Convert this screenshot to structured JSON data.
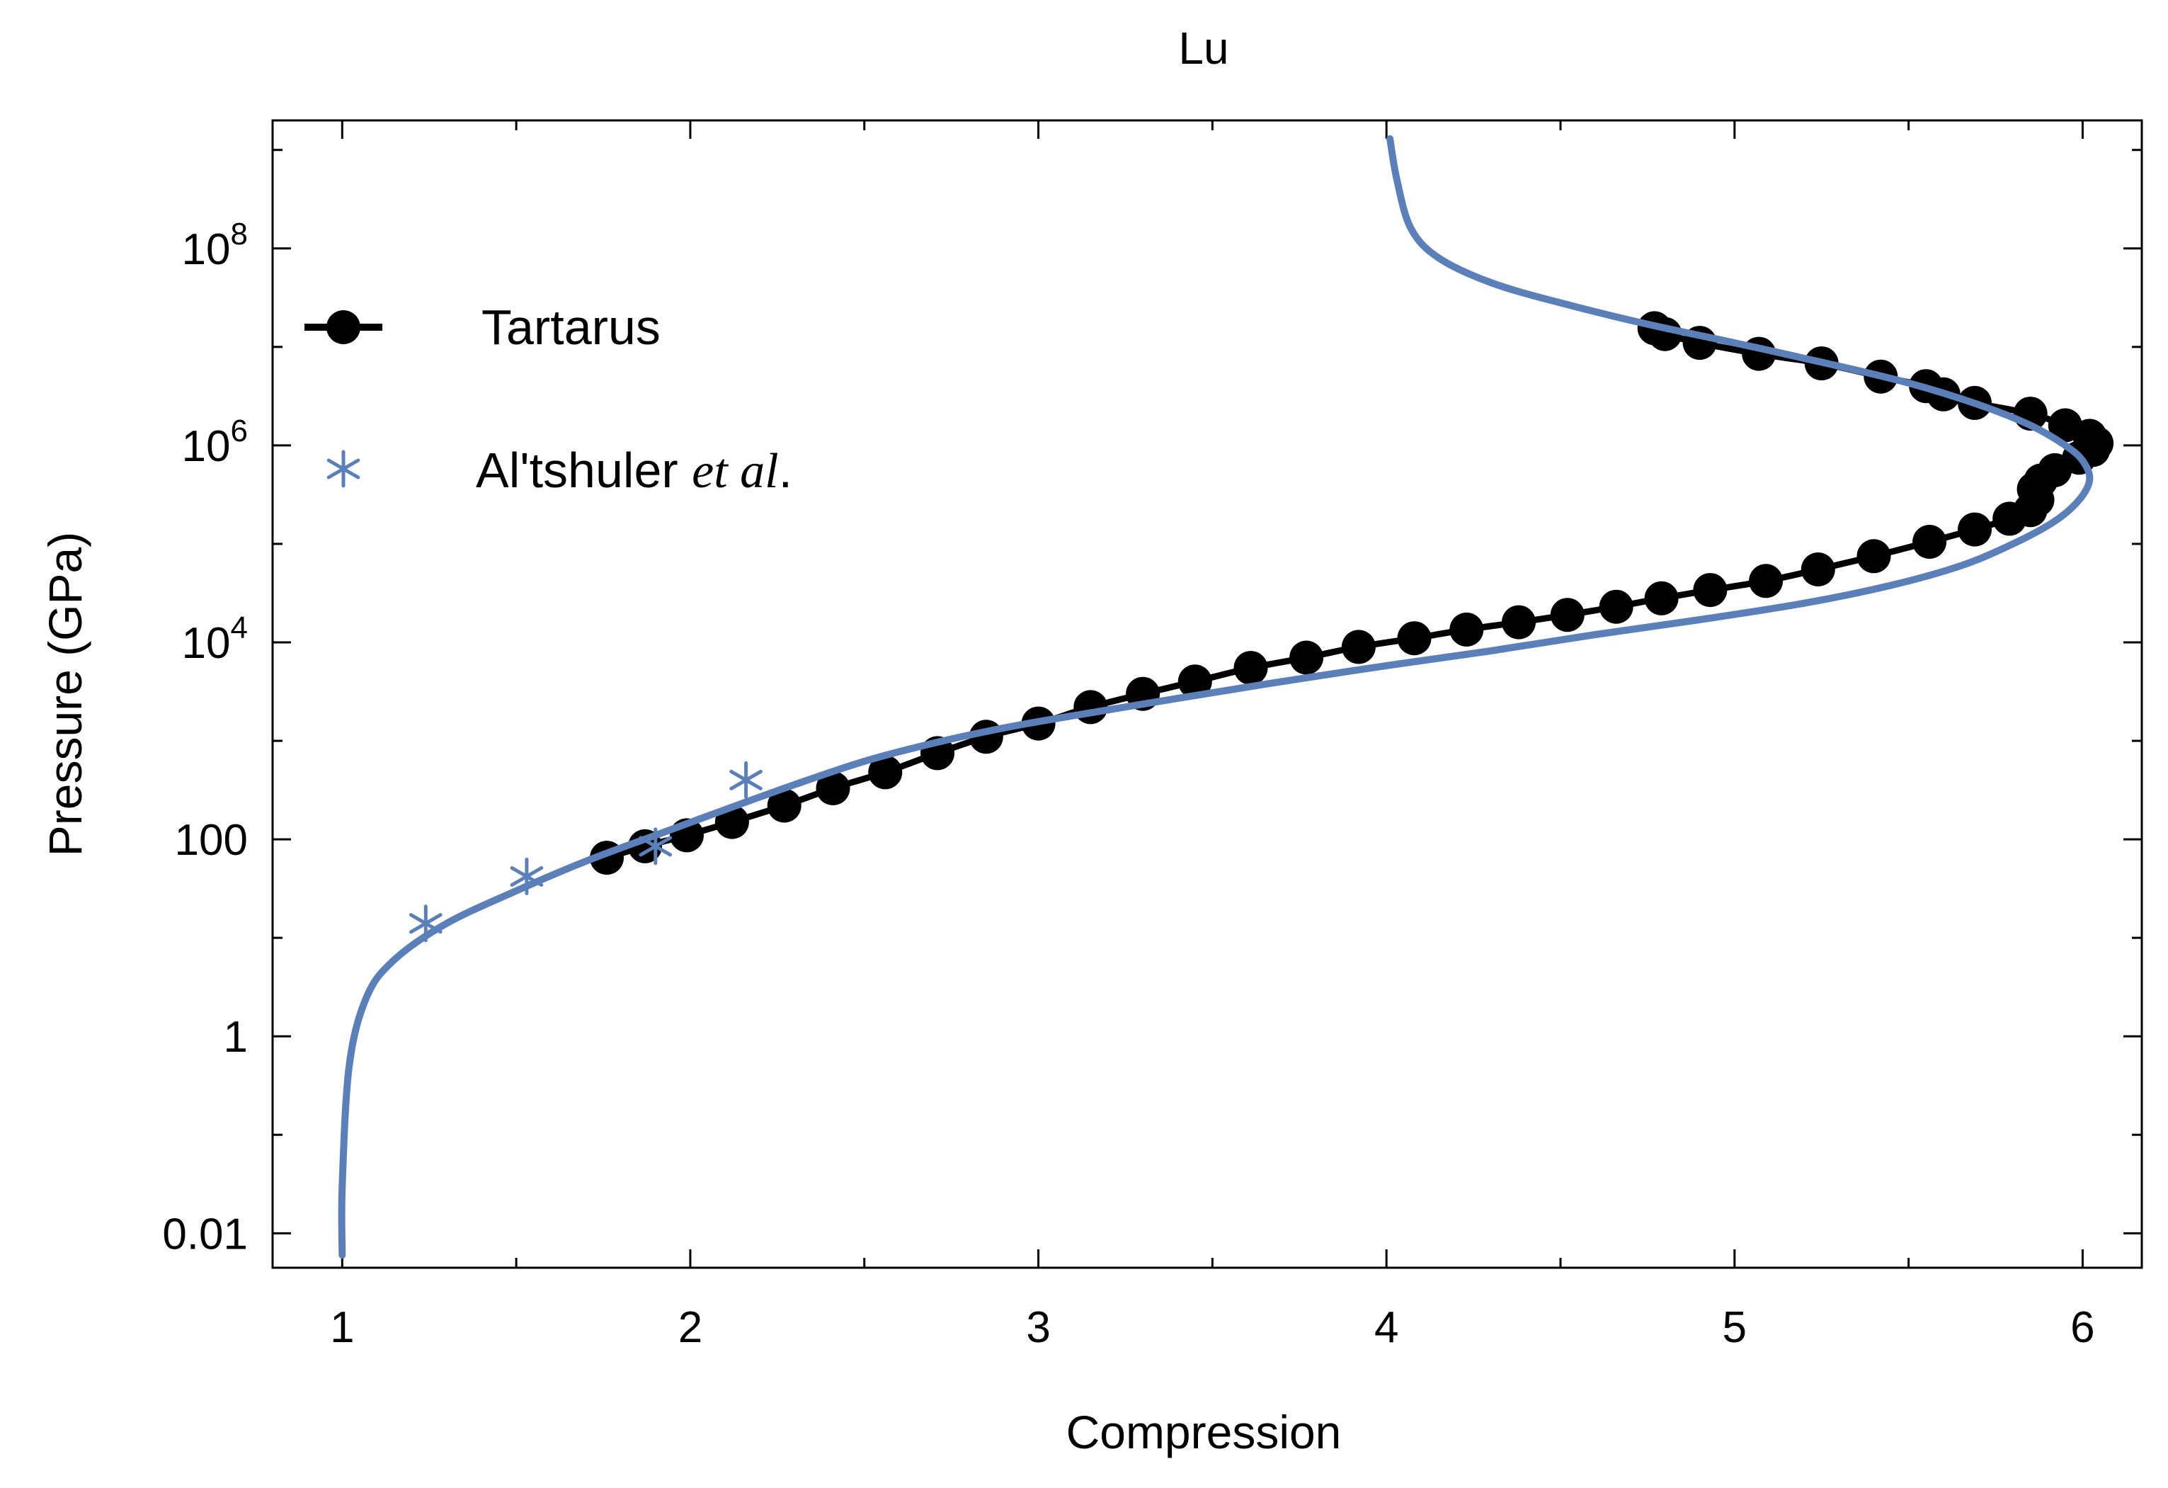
{
  "chart_data": {
    "type": "scatter",
    "title": "Lu",
    "xlabel": "Compression",
    "ylabel": "Pressure (GPa)",
    "xlim": [
      0.8,
      6.17
    ],
    "ylim_log10": [
      -2.35,
      9.3
    ],
    "y_scale": "log",
    "x_ticks": [
      1,
      2,
      3,
      4,
      5,
      6
    ],
    "x_tick_labels": [
      "1",
      "2",
      "3",
      "4",
      "5",
      "6"
    ],
    "y_ticks_log10": [
      -2,
      0,
      2,
      4,
      6,
      8
    ],
    "y_tick_labels": [
      {
        "base": "0.01",
        "exp": ""
      },
      {
        "base": "1",
        "exp": ""
      },
      {
        "base": "100",
        "exp": ""
      },
      {
        "base": "10",
        "exp": "4"
      },
      {
        "base": "10",
        "exp": "6"
      },
      {
        "base": "10",
        "exp": "8"
      }
    ],
    "legend": {
      "position": "top-left",
      "entries": [
        {
          "label": "Tartarus",
          "italic_part": "",
          "suffix": ""
        },
        {
          "label": "Al'tshuler ",
          "italic_part": "et al",
          "suffix": "."
        }
      ]
    },
    "colors": {
      "tartarus": "#000000",
      "altshuler": "#5b7fb9",
      "curve": "#5b7fb9"
    },
    "series": [
      {
        "name": "Tartarus",
        "style": "line-markers",
        "points": [
          [
            1.76,
            65
          ],
          [
            1.87,
            85
          ],
          [
            1.99,
            110
          ],
          [
            2.12,
            150
          ],
          [
            2.27,
            220
          ],
          [
            2.41,
            330
          ],
          [
            2.56,
            480
          ],
          [
            2.71,
            750
          ],
          [
            2.85,
            1100
          ],
          [
            3.0,
            1500
          ],
          [
            3.15,
            2200
          ],
          [
            3.3,
            3000
          ],
          [
            3.45,
            4000
          ],
          [
            3.61,
            5500
          ],
          [
            3.77,
            7000
          ],
          [
            3.92,
            9000
          ],
          [
            4.08,
            11000
          ],
          [
            4.23,
            13500
          ],
          [
            4.38,
            16000
          ],
          [
            4.52,
            19000
          ],
          [
            4.66,
            23000
          ],
          [
            4.79,
            28000
          ],
          [
            4.93,
            34000
          ],
          [
            5.09,
            42000
          ],
          [
            5.24,
            55000
          ],
          [
            5.4,
            75000
          ],
          [
            5.56,
            105000
          ],
          [
            5.69,
            140000
          ],
          [
            5.79,
            180000
          ],
          [
            5.85,
            220000
          ],
          [
            5.87,
            280000
          ],
          [
            5.86,
            360000
          ],
          [
            5.88,
            440000
          ],
          [
            5.92,
            560000
          ],
          [
            5.99,
            750000
          ],
          [
            6.03,
            900000
          ],
          [
            6.04,
            1050000
          ],
          [
            6.02,
            1250000
          ],
          [
            5.95,
            1600000
          ],
          [
            5.85,
            2100000
          ],
          [
            5.69,
            2700000
          ],
          [
            5.6,
            3300000
          ],
          [
            5.55,
            4000000
          ],
          [
            5.42,
            5000000
          ],
          [
            5.25,
            6800000
          ],
          [
            5.07,
            8500000
          ],
          [
            4.9,
            11000000
          ],
          [
            4.8,
            13500000
          ],
          [
            4.77,
            15500000
          ]
        ]
      },
      {
        "name": "Al'tshuler et al.",
        "style": "markers",
        "points": [
          [
            1.24,
            14
          ],
          [
            1.53,
            42
          ],
          [
            1.9,
            85
          ],
          [
            2.16,
            400
          ]
        ]
      },
      {
        "name": "",
        "style": "line",
        "points": [
          [
            1.0,
            0.006
          ],
          [
            1.0,
            0.03
          ],
          [
            1.02,
            0.5
          ],
          [
            1.07,
            2.5
          ],
          [
            1.15,
            6
          ],
          [
            1.3,
            14
          ],
          [
            1.5,
            30
          ],
          [
            1.7,
            60
          ],
          [
            1.9,
            110
          ],
          [
            2.1,
            200
          ],
          [
            2.3,
            360
          ],
          [
            2.5,
            620
          ],
          [
            2.7,
            950
          ],
          [
            2.9,
            1350
          ],
          [
            3.1,
            1800
          ],
          [
            3.4,
            2700
          ],
          [
            3.7,
            4000
          ],
          [
            4.0,
            5800
          ],
          [
            4.3,
            8200
          ],
          [
            4.6,
            12000
          ],
          [
            4.9,
            17000
          ],
          [
            5.2,
            25000
          ],
          [
            5.45,
            38000
          ],
          [
            5.65,
            60000
          ],
          [
            5.8,
            100000
          ],
          [
            5.92,
            170000
          ],
          [
            5.99,
            280000
          ],
          [
            6.02,
            450000
          ],
          [
            6.0,
            700000
          ],
          [
            5.95,
            1000000
          ],
          [
            5.85,
            1600000
          ],
          [
            5.7,
            2600000
          ],
          [
            5.5,
            4300000
          ],
          [
            5.25,
            7000000
          ],
          [
            5.0,
            11000000
          ],
          [
            4.75,
            17000000
          ],
          [
            4.5,
            28000000
          ],
          [
            4.3,
            45000000
          ],
          [
            4.15,
            80000000
          ],
          [
            4.07,
            160000000
          ],
          [
            4.03,
            500000000
          ],
          [
            4.01,
            1300000000
          ]
        ]
      }
    ]
  }
}
